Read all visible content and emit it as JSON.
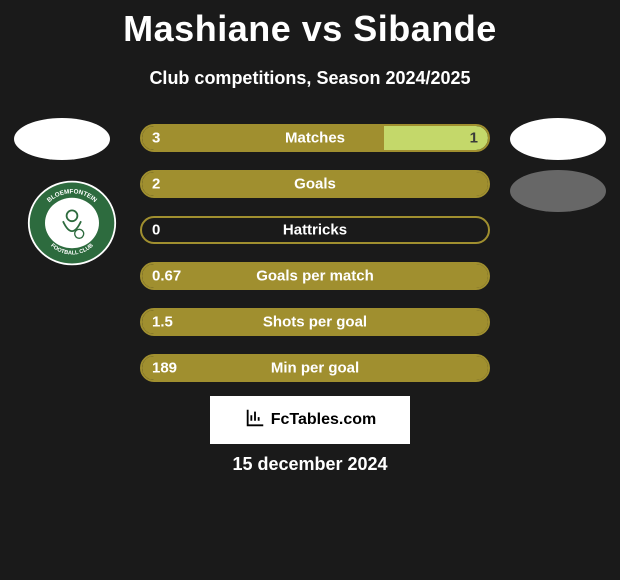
{
  "title": "Mashiane vs Sibande",
  "subtitle": "Club competitions, Season 2024/2025",
  "date": "15 december 2024",
  "brand": "FcTables.com",
  "colors": {
    "primary": "#a08f2f",
    "accent_right": "#c4d86a",
    "border": "#a08f2f",
    "text": "#ffffff",
    "background": "#1a1a1a"
  },
  "crest": {
    "ring_color": "#2d6b3e",
    "inner_color": "#ffffff",
    "top_text": "BLOEMFONTEIN",
    "bottom_text": "FOOTBALL CLUB",
    "side_text": "CELTIC"
  },
  "bars": [
    {
      "label": "Matches",
      "left_value": "3",
      "right_value": "1",
      "left_fill_pct": 70,
      "right_fill_pct": 30,
      "left_color": "#a08f2f",
      "right_color": "#c4d86a",
      "right_text_color": "#3a3a3a"
    },
    {
      "label": "Goals",
      "left_value": "2",
      "right_value": "",
      "left_fill_pct": 100,
      "right_fill_pct": 0,
      "left_color": "#a08f2f",
      "right_color": "#c4d86a"
    },
    {
      "label": "Hattricks",
      "left_value": "0",
      "right_value": "",
      "left_fill_pct": 0,
      "right_fill_pct": 0,
      "left_color": "#a08f2f",
      "right_color": "#c4d86a"
    },
    {
      "label": "Goals per match",
      "left_value": "0.67",
      "right_value": "",
      "left_fill_pct": 100,
      "right_fill_pct": 0,
      "left_color": "#a08f2f",
      "right_color": "#c4d86a"
    },
    {
      "label": "Shots per goal",
      "left_value": "1.5",
      "right_value": "",
      "left_fill_pct": 100,
      "right_fill_pct": 0,
      "left_color": "#a08f2f",
      "right_color": "#c4d86a"
    },
    {
      "label": "Min per goal",
      "left_value": "189",
      "right_value": "",
      "left_fill_pct": 100,
      "right_fill_pct": 0,
      "left_color": "#a08f2f",
      "right_color": "#c4d86a"
    }
  ]
}
